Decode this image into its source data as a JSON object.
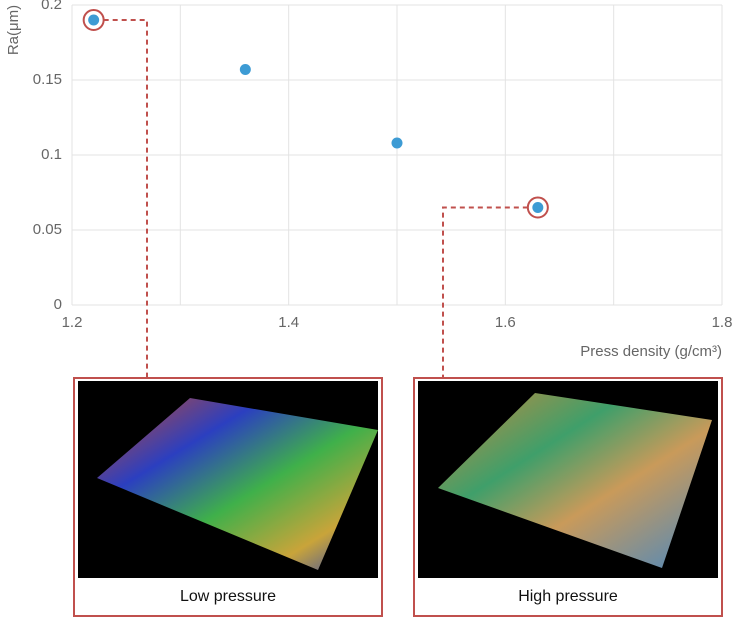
{
  "chart_data": {
    "type": "scatter",
    "ylabel": "Ra(μm)",
    "xlabel": "Press density (g/cm³)",
    "x": [
      1.22,
      1.36,
      1.5,
      1.63
    ],
    "values": [
      0.19,
      0.157,
      0.108,
      0.065
    ],
    "color": "#3d9bd4",
    "xlim": [
      1.2,
      1.8
    ],
    "xticks": [
      1.2,
      1.4,
      1.6,
      1.8
    ],
    "xgrid": [
      1.3,
      1.5,
      1.7
    ],
    "ylim": [
      0,
      0.2
    ],
    "yticks": [
      0,
      0.05,
      0.1,
      0.15,
      0.2
    ],
    "grid": true,
    "highlight_color": "#c0504d",
    "annotations": [
      {
        "text": "Low  pressure",
        "point": 0
      },
      {
        "text": "High pressure",
        "point": 3
      }
    ]
  }
}
